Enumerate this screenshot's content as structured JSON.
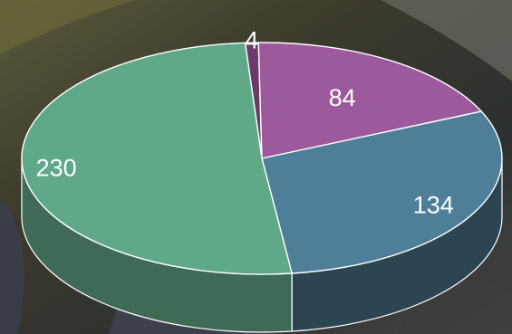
{
  "chart_data": {
    "type": "pie",
    "style": "3d",
    "title": "",
    "values": [
      4,
      84,
      134,
      230
    ],
    "data_labels": [
      "4",
      "84",
      "134",
      "230"
    ],
    "colors": [
      "#6b3a6a",
      "#9c5a9c",
      "#4f7f98",
      "#5fa888"
    ],
    "side_colors": [
      "#3a2036",
      "#5a3458",
      "#2b4552",
      "#3f6a55"
    ],
    "legend": "none"
  }
}
